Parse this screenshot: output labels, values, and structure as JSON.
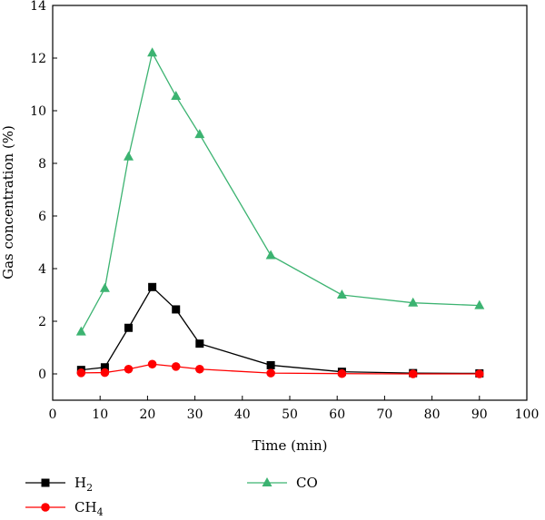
{
  "chart_data": {
    "type": "line",
    "xlabel": "Time (min)",
    "ylabel": "Gas concentration (%)",
    "xlim": [
      0,
      100
    ],
    "ylim": [
      -1,
      14
    ],
    "xticks": [
      0,
      10,
      20,
      30,
      40,
      50,
      60,
      70,
      80,
      90,
      100
    ],
    "yticks": [
      0,
      2,
      4,
      6,
      8,
      10,
      12,
      14
    ],
    "grid": false,
    "legend_position": "bottom-left",
    "series": [
      {
        "name": "H",
        "subscript": "2",
        "color": "#000000",
        "marker": "square",
        "x": [
          6,
          11,
          16,
          21,
          26,
          31,
          46,
          61,
          76,
          90
        ],
        "y": [
          0.15,
          0.25,
          1.75,
          3.3,
          2.45,
          1.15,
          0.33,
          0.08,
          0.03,
          0.02
        ]
      },
      {
        "name": "CH",
        "subscript": "4",
        "color": "#ff0000",
        "marker": "circle",
        "x": [
          6,
          11,
          16,
          21,
          26,
          31,
          46,
          61,
          76,
          90
        ],
        "y": [
          0.04,
          0.05,
          0.18,
          0.37,
          0.28,
          0.18,
          0.03,
          0.01,
          0.0,
          0.0
        ]
      },
      {
        "name": "CO",
        "subscript": "",
        "color": "#3cb371",
        "marker": "triangle",
        "x": [
          6,
          11,
          16,
          21,
          26,
          31,
          46,
          61,
          76,
          90
        ],
        "y": [
          1.6,
          3.25,
          8.25,
          12.2,
          10.55,
          9.1,
          4.5,
          3.0,
          2.7,
          2.6
        ]
      }
    ]
  }
}
